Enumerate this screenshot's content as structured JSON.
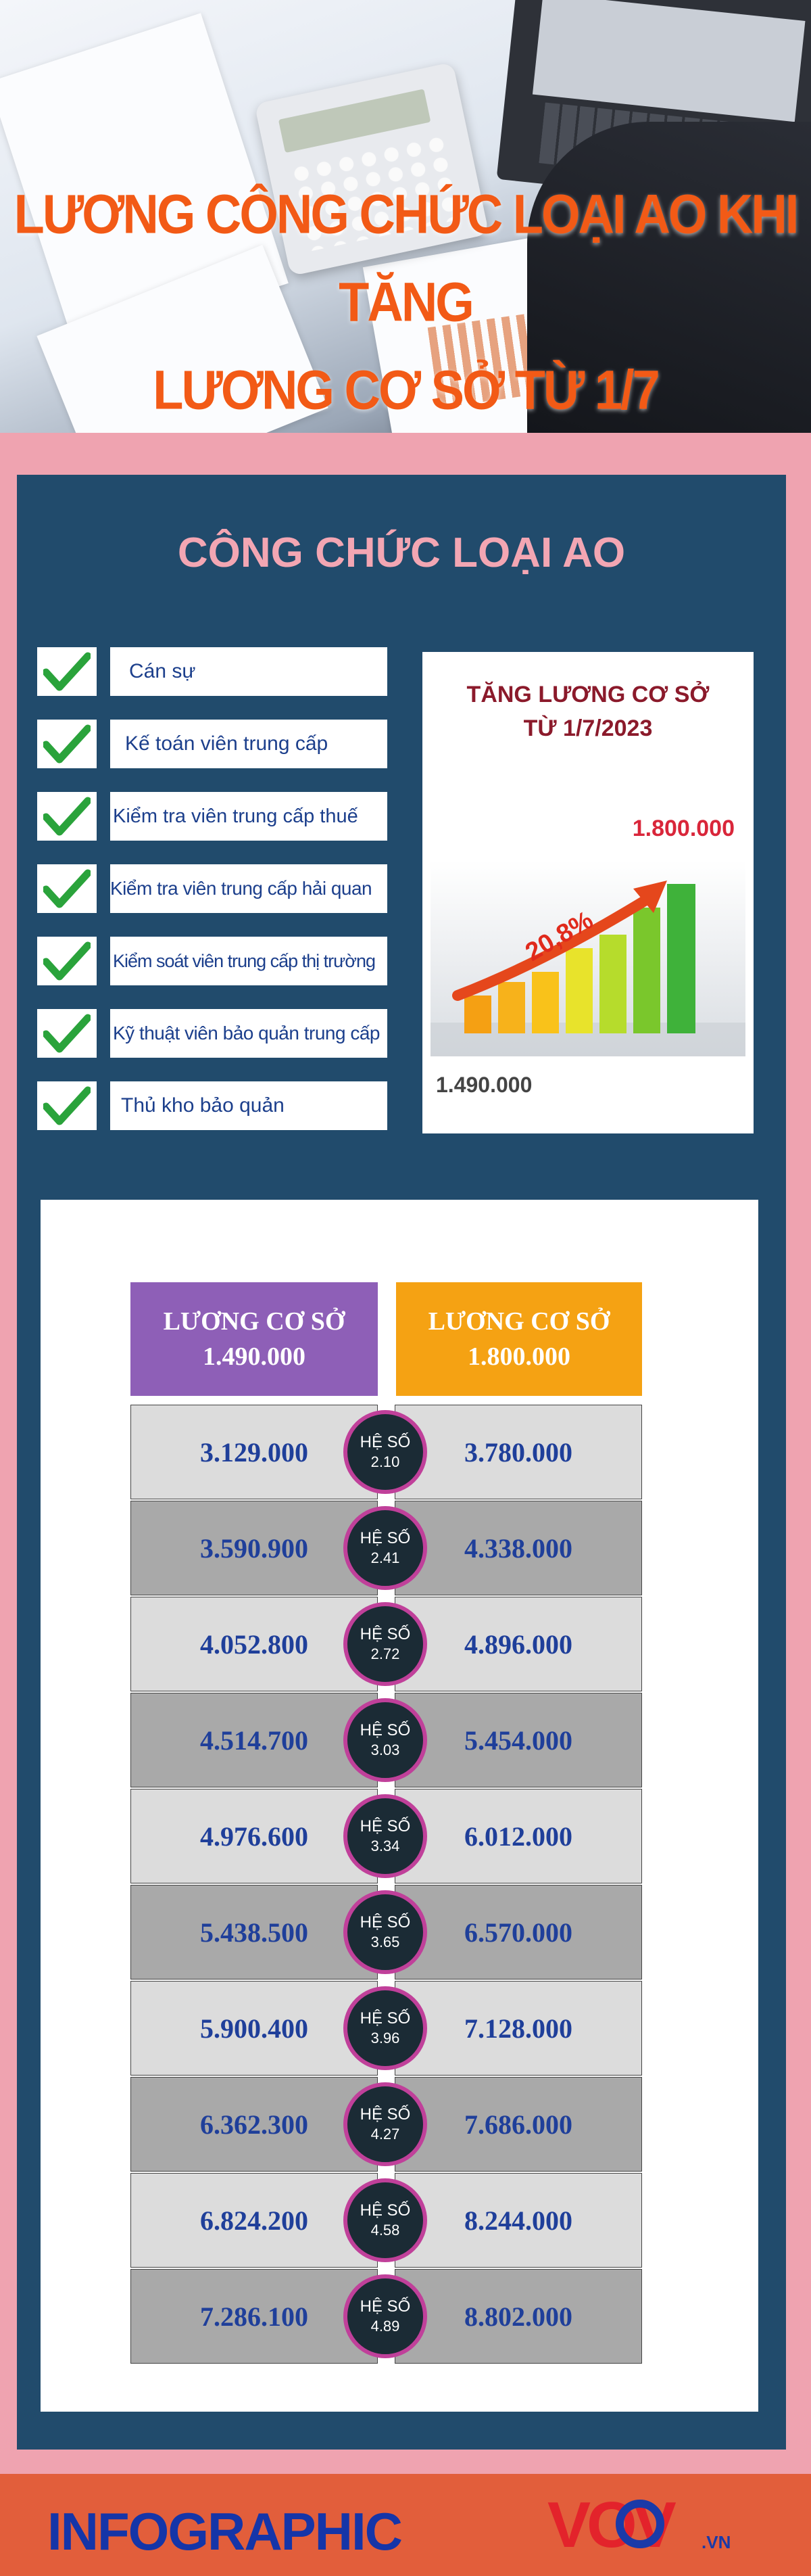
{
  "hero": {
    "title_line1": "LƯƠNG CÔNG CHỨC LOẠI AO KHI TĂNG",
    "title_line2": "LƯƠNG CƠ SỞ TỪ 1/7"
  },
  "section": {
    "title": "CÔNG CHỨC LOẠI AO"
  },
  "positions": [
    {
      "label": "Cán sự"
    },
    {
      "label": "Kế toán viên trung cấp"
    },
    {
      "label": "Kiểm tra viên trung cấp thuế"
    },
    {
      "label": "Kiểm tra viên trung cấp hải quan"
    },
    {
      "label": "Kiểm soát viên trung cấp thị trường"
    },
    {
      "label": "Kỹ thuật viên bảo quản trung cấp"
    },
    {
      "label": "Thủ kho bảo quản"
    }
  ],
  "increase_card": {
    "title_line1": "TĂNG LƯƠNG CƠ SỞ",
    "title_line2": "TỪ 1/7/2023",
    "new_value": "1.800.000",
    "old_value": "1.490.000",
    "percent": "20,8%"
  },
  "table": {
    "header_left_label": "LƯƠNG CƠ SỞ",
    "header_left_value": "1.490.000",
    "header_right_label": "LƯƠNG CƠ SỞ",
    "header_right_value": "1.800.000",
    "coef_prefix": "HỆ SỐ",
    "rows": [
      {
        "old": "3.129.000",
        "coef": "2.10",
        "new": "3.780.000"
      },
      {
        "old": "3.590.900",
        "coef": "2.41",
        "new": "4.338.000"
      },
      {
        "old": "4.052.800",
        "coef": "2.72",
        "new": "4.896.000"
      },
      {
        "old": "4.514.700",
        "coef": "3.03",
        "new": "5.454.000"
      },
      {
        "old": "4.976.600",
        "coef": "3.34",
        "new": "6.012.000"
      },
      {
        "old": "5.438.500",
        "coef": "3.65",
        "new": "6.570.000"
      },
      {
        "old": "5.900.400",
        "coef": "3.96",
        "new": "7.128.000"
      },
      {
        "old": "6.362.300",
        "coef": "4.27",
        "new": "7.686.000"
      },
      {
        "old": "6.824.200",
        "coef": "4.58",
        "new": "8.244.000"
      },
      {
        "old": "7.286.100",
        "coef": "4.89",
        "new": "8.802.000"
      }
    ]
  },
  "footer": {
    "brand": "INFOGRAPHIC",
    "logo_text": "VOV",
    "logo_suffix": ".VN"
  },
  "colors": {
    "background": "#efa3b0",
    "panel": "#214b6c",
    "title_orange": "#f25a16",
    "header_purple": "#8e5fb7",
    "header_orange": "#f5a213",
    "footer": "#e25e3b"
  },
  "icons": [
    "check-icon",
    "growth-chart-icon",
    "vov-logo-icon"
  ]
}
